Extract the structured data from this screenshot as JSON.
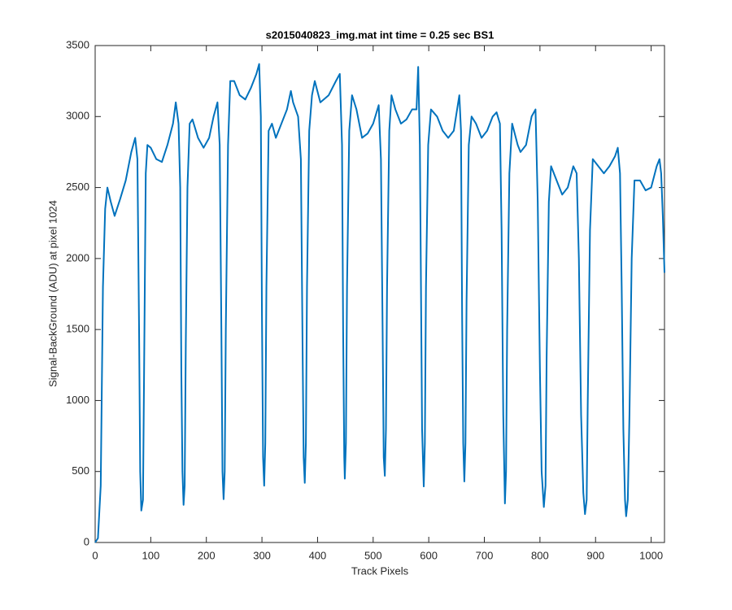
{
  "chart_data": {
    "type": "line",
    "title": "s2015040823_img.mat int time = 0.25 sec   BS1",
    "xlabel": "Track Pixels",
    "ylabel": "Signal-BackGround (ADU) at pixel 1024",
    "x": [
      0,
      5,
      10,
      14,
      18,
      22,
      28,
      35,
      45,
      55,
      65,
      72,
      76,
      79,
      81,
      83,
      86,
      88,
      91,
      94,
      100,
      110,
      120,
      130,
      140,
      145,
      150,
      153,
      155,
      157,
      159,
      161,
      163,
      166,
      170,
      175,
      185,
      195,
      205,
      213,
      220,
      224,
      227,
      229,
      231,
      233,
      235,
      239,
      243,
      250,
      260,
      270,
      280,
      290,
      295,
      298,
      300,
      302,
      304,
      306,
      308,
      312,
      318,
      325,
      335,
      345,
      352,
      356,
      365,
      370,
      373,
      375,
      377,
      379,
      381,
      385,
      390,
      395,
      405,
      420,
      433,
      440,
      444,
      446,
      448,
      449,
      451,
      453,
      457,
      462,
      470,
      480,
      490,
      500,
      510,
      514,
      517,
      519,
      521,
      523,
      525,
      529,
      533,
      540,
      550,
      560,
      570,
      578,
      581,
      584,
      586,
      588,
      591,
      593,
      595,
      599,
      604,
      615,
      625,
      635,
      645,
      655,
      658,
      660,
      662,
      664,
      666,
      668,
      672,
      677,
      685,
      695,
      705,
      715,
      722,
      728,
      731,
      734,
      737,
      739,
      741,
      745,
      750,
      760,
      765,
      775,
      785,
      792,
      796,
      800,
      803,
      807,
      810,
      812,
      816,
      820,
      830,
      840,
      850,
      860,
      866,
      870,
      874,
      878,
      881,
      884,
      886,
      890,
      895,
      905,
      915,
      925,
      935,
      940,
      944,
      947,
      950,
      953,
      955,
      958,
      961,
      965,
      970,
      980,
      990,
      1000,
      1010,
      1015,
      1018,
      1021,
      1024
    ],
    "values": [
      0,
      30,
      400,
      1800,
      2350,
      2500,
      2400,
      2300,
      2420,
      2550,
      2750,
      2850,
      2700,
      1500,
      500,
      225,
      300,
      1200,
      2600,
      2800,
      2780,
      2700,
      2680,
      2800,
      2950,
      3100,
      2950,
      2500,
      1200,
      500,
      265,
      400,
      1400,
      2500,
      2950,
      2980,
      2850,
      2780,
      2850,
      3000,
      3100,
      2800,
      1500,
      500,
      305,
      500,
      1500,
      2800,
      3250,
      3250,
      3150,
      3120,
      3200,
      3300,
      3370,
      3000,
      1600,
      600,
      400,
      700,
      1800,
      2900,
      2950,
      2850,
      2950,
      3050,
      3180,
      3100,
      3000,
      2700,
      1400,
      600,
      420,
      700,
      1800,
      2900,
      3150,
      3250,
      3100,
      3150,
      3250,
      3300,
      2800,
      1500,
      600,
      450,
      700,
      1800,
      2900,
      3150,
      3050,
      2850,
      2880,
      2950,
      3080,
      2700,
      1500,
      600,
      470,
      800,
      1800,
      2900,
      3150,
      3050,
      2950,
      2980,
      3050,
      3050,
      3350,
      2800,
      1800,
      800,
      395,
      700,
      1800,
      2800,
      3050,
      3000,
      2900,
      2850,
      2900,
      3150,
      2900,
      1600,
      700,
      430,
      700,
      1700,
      2800,
      3000,
      2950,
      2850,
      2900,
      3000,
      3030,
      2950,
      2200,
      900,
      275,
      500,
      1500,
      2600,
      2950,
      2800,
      2750,
      2800,
      3000,
      3050,
      2400,
      1200,
      500,
      250,
      400,
      1300,
      2400,
      2650,
      2550,
      2450,
      2500,
      2650,
      2600,
      2000,
      900,
      350,
      200,
      300,
      1000,
      2200,
      2700,
      2650,
      2600,
      2650,
      2720,
      2780,
      2600,
      1800,
      800,
      300,
      185,
      300,
      900,
      2000,
      2550,
      2550,
      2480,
      2500,
      2650,
      2700,
      2600,
      2300,
      1900
    ],
    "color": "#0072bd",
    "xlim": [
      0,
      1024
    ],
    "xticks": [
      0,
      100,
      200,
      300,
      400,
      500,
      600,
      700,
      800,
      900,
      1000
    ],
    "ylim": [
      0,
      3500
    ],
    "yticks": [
      0,
      500,
      1000,
      1500,
      2000,
      2500,
      3000,
      3500
    ]
  }
}
